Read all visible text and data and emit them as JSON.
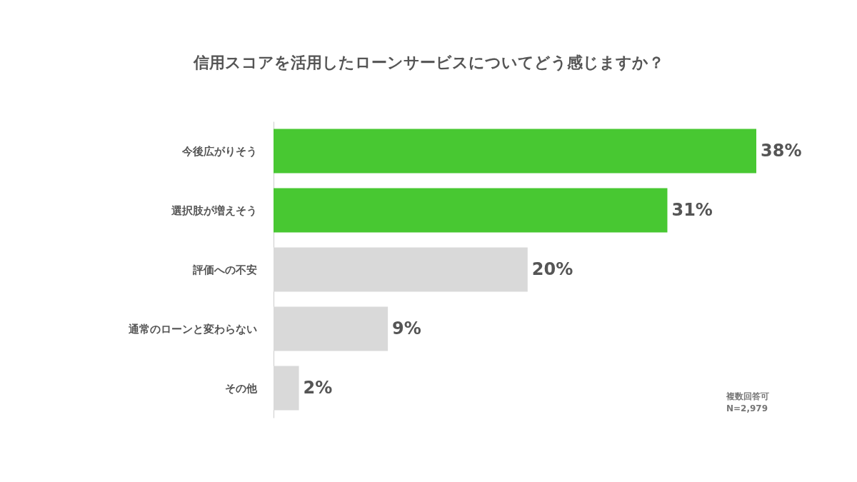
{
  "chart_data": {
    "type": "bar",
    "orientation": "horizontal",
    "title": "信用スコアを活用したローンサービスについてどう感じますか？",
    "categories": [
      "今後広がりそう",
      "選択肢が増えそう",
      "評価への不安",
      "通常のローンと変わらない",
      "その他"
    ],
    "values": [
      38,
      31,
      20,
      9,
      2
    ],
    "colors": [
      "#48c832",
      "#48c832",
      "#d9d9d9",
      "#d9d9d9",
      "#d9d9d9"
    ],
    "value_labels": [
      "38%",
      "31%",
      "20%",
      "9%",
      "2%"
    ],
    "tick_labels": "y",
    "grid": false,
    "annotations": [
      "複数回答可",
      "N=2,979"
    ]
  }
}
